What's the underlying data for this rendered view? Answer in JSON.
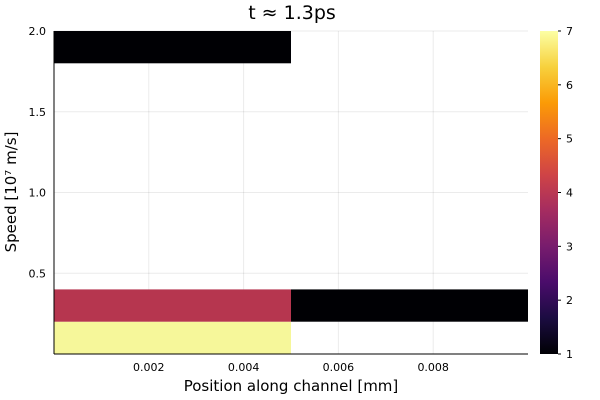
{
  "chart_data": {
    "type": "heatmap",
    "title": "t ≈ 1.3ps",
    "xlabel": "Position along channel [mm]",
    "ylabel": "Speed [10⁷ m/s]",
    "xlim": [
      0,
      0.01
    ],
    "ylim": [
      0,
      2.0
    ],
    "x_ticks": [
      0.002,
      0.004,
      0.006,
      0.008
    ],
    "x_tick_labels": [
      "0.002",
      "0.004",
      "0.006",
      "0.008"
    ],
    "y_ticks": [
      0.5,
      1.0,
      1.5,
      2.0
    ],
    "y_tick_labels": [
      "0.5",
      "1.0",
      "1.5",
      "2.0"
    ],
    "grid": true,
    "colormap": "inferno",
    "colorbar": {
      "range": [
        1,
        7
      ],
      "ticks": [
        1,
        2,
        3,
        4,
        5,
        6,
        7
      ],
      "tick_labels": [
        "1",
        "2",
        "3",
        "4",
        "5",
        "6",
        "7"
      ],
      "stops": [
        "#000004",
        "#1b0c41",
        "#4a0c6b",
        "#781c6d",
        "#a52c60",
        "#cf4446",
        "#ed6925",
        "#fb9b06",
        "#f7d13d",
        "#fcffa4"
      ]
    },
    "cells": [
      {
        "x0": 0.0,
        "x1": 0.005,
        "y0": 0.0,
        "y1": 0.2,
        "value": 7,
        "color": "#f6f79a"
      },
      {
        "x0": 0.0,
        "x1": 0.005,
        "y0": 0.2,
        "y1": 0.4,
        "value": 4,
        "color": "#b6364f"
      },
      {
        "x0": 0.005,
        "x1": 0.01,
        "y0": 0.2,
        "y1": 0.4,
        "value": 1,
        "color": "#000004"
      },
      {
        "x0": 0.0,
        "x1": 0.005,
        "y0": 1.8,
        "y1": 2.0,
        "value": 1,
        "color": "#000004"
      }
    ]
  }
}
